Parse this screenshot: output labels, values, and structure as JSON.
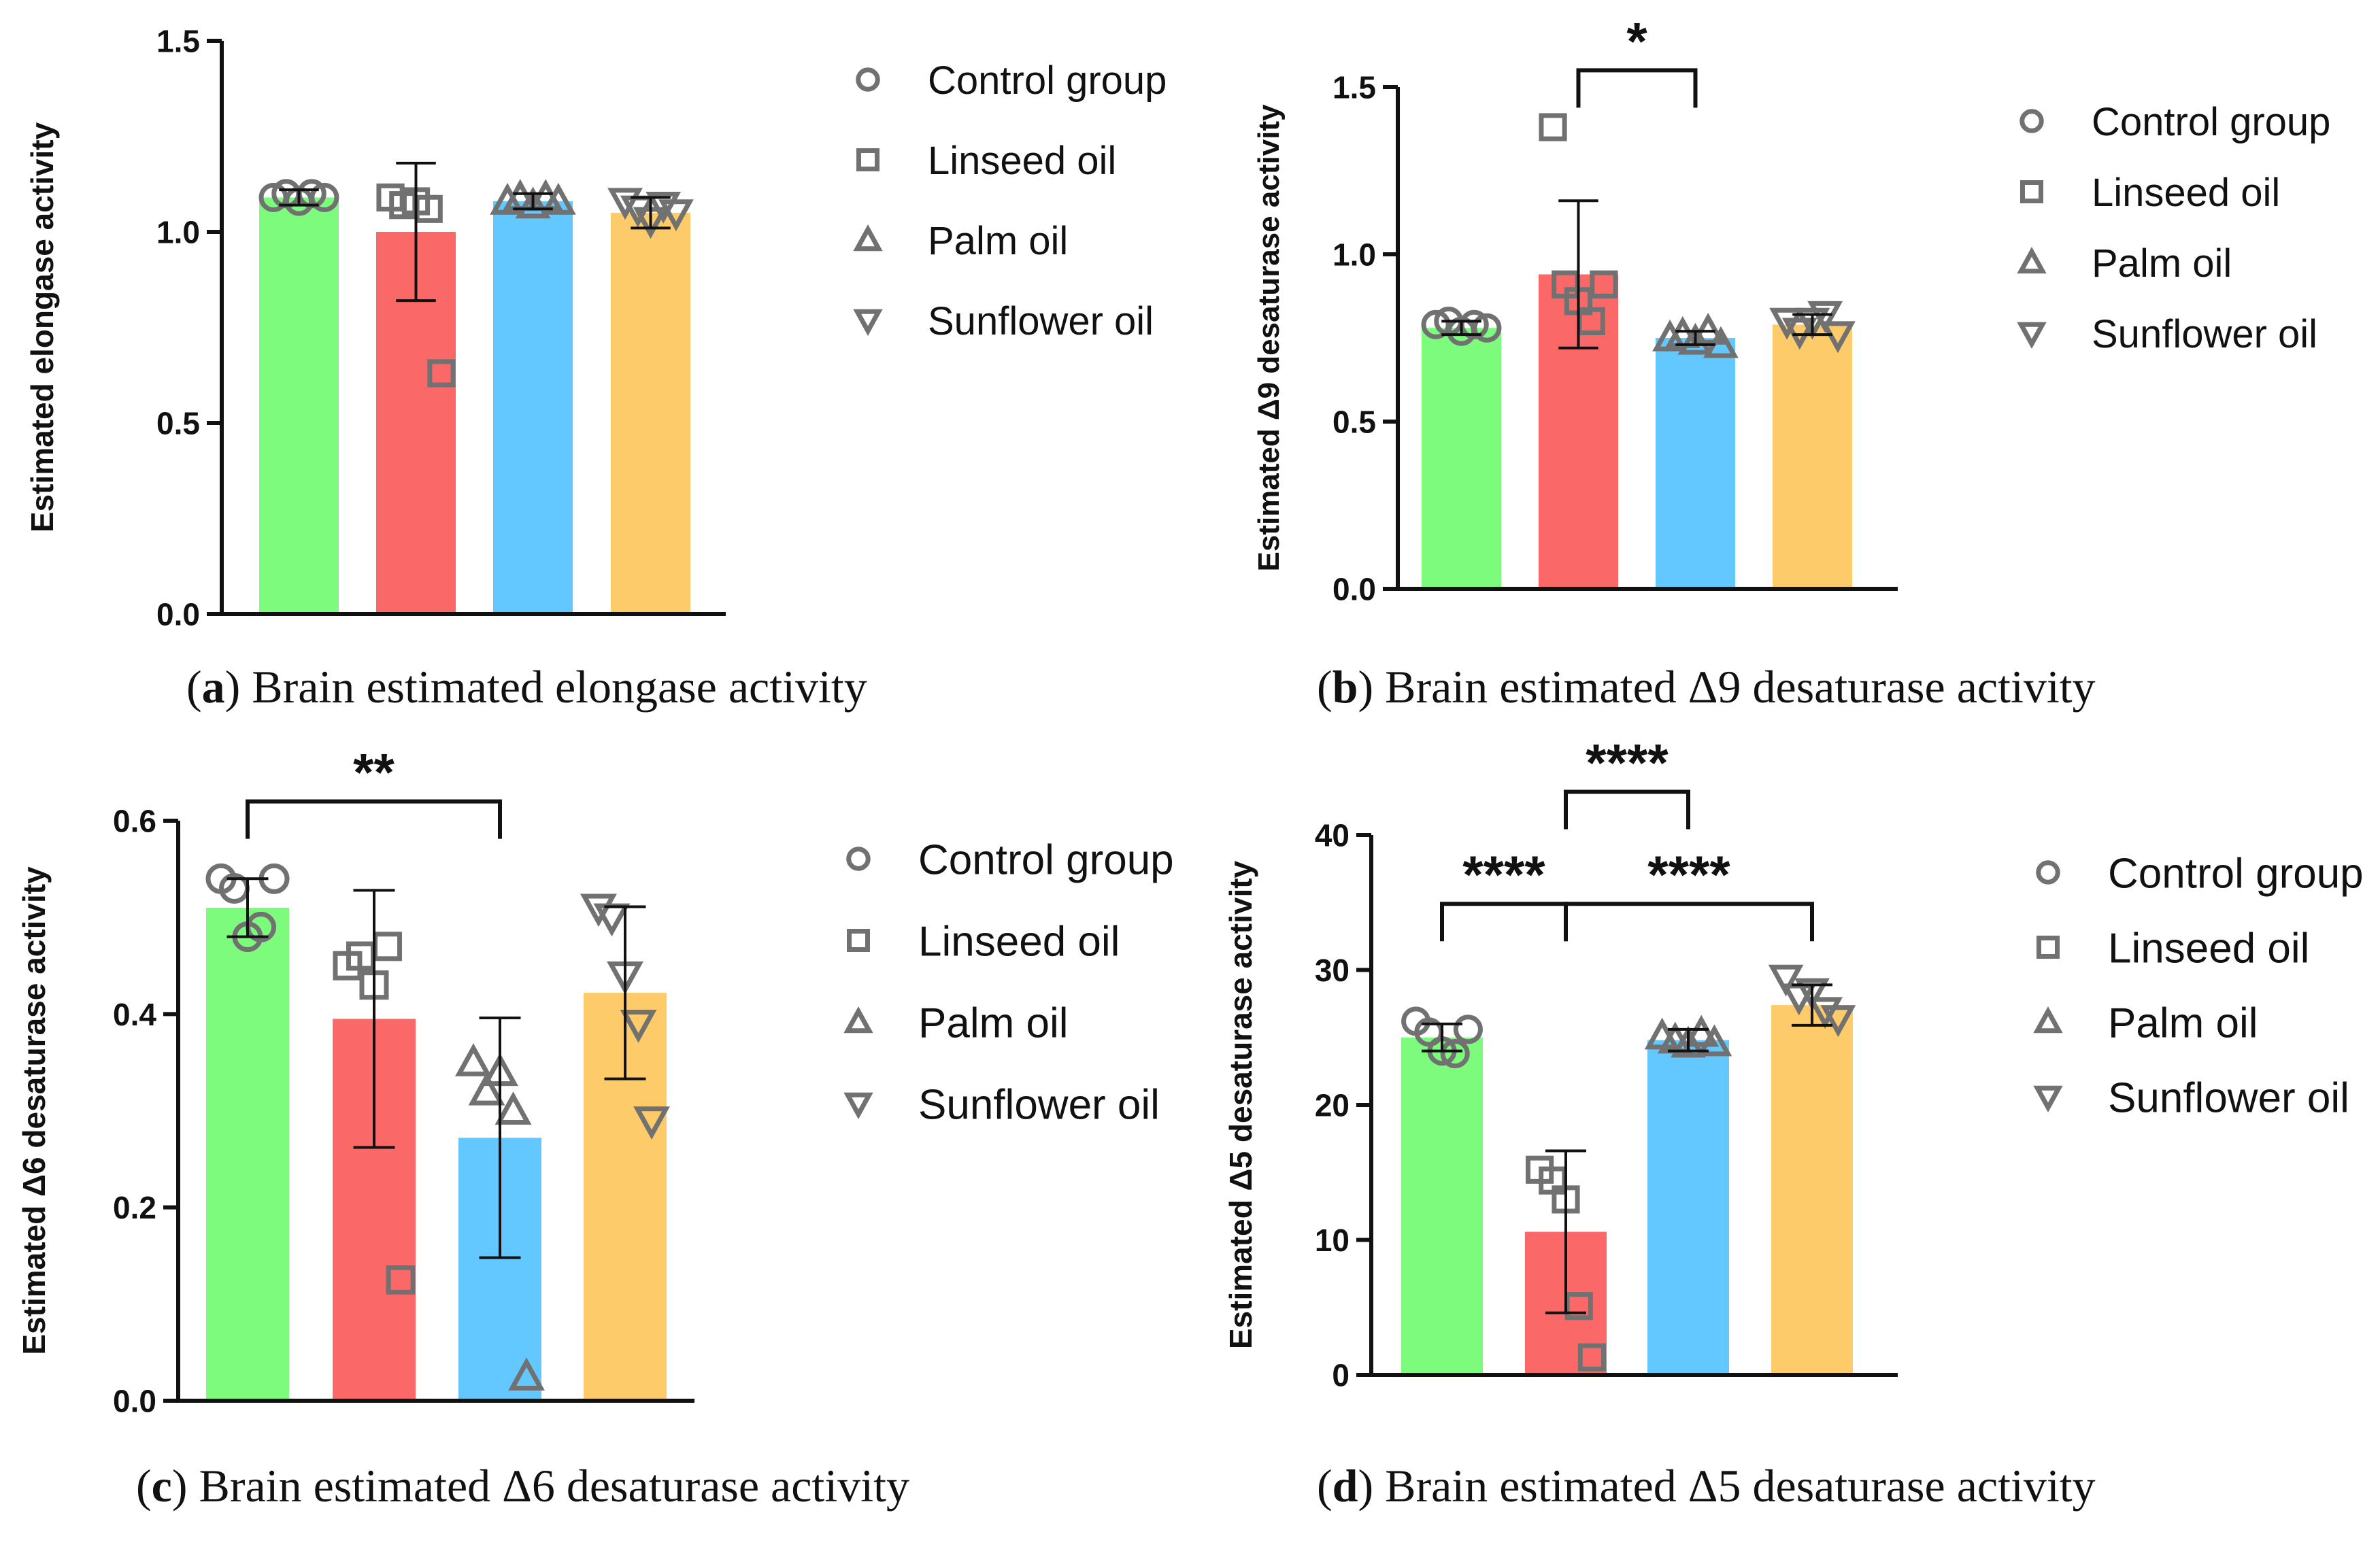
{
  "groups": [
    "Control group",
    "Linseed oil",
    "Palm oil",
    "Sunflower oil"
  ],
  "colors": {
    "Control group": "#7dfb7d",
    "Linseed oil": "#fb6868",
    "Palm oil": "#62c8ff",
    "Sunflower oil": "#fdcb6a",
    "marker": "#717171",
    "axis": "#111111"
  },
  "markers": {
    "Control group": "circle",
    "Linseed oil": "square",
    "Palm oil": "triangle-up",
    "Sunflower oil": "triangle-down"
  },
  "chart_data": [
    {
      "id": "a",
      "type": "bar",
      "caption_letter": "a",
      "caption_text": "Brain estimated elongase activity",
      "ylabel": "Estimated elongase activity",
      "ylim": [
        0,
        1.5
      ],
      "yticks": [
        0.0,
        0.5,
        1.0,
        1.5
      ],
      "ytick_labels": [
        "0.0",
        "0.5",
        "1.0",
        "1.5"
      ],
      "legend": "right",
      "categories": [
        "Control group",
        "Linseed oil",
        "Palm oil",
        "Sunflower oil"
      ],
      "values": [
        1.09,
        1.0,
        1.08,
        1.05
      ],
      "errors": [
        0.02,
        0.18,
        0.02,
        0.04
      ],
      "points": [
        [
          1.09,
          1.1,
          1.08,
          1.1,
          1.09
        ],
        [
          1.09,
          1.07,
          1.08,
          1.06,
          0.63
        ],
        [
          1.08,
          1.09,
          1.07,
          1.09,
          1.08
        ],
        [
          1.08,
          1.06,
          1.03,
          1.07,
          1.05
        ]
      ],
      "significance": []
    },
    {
      "id": "b",
      "type": "bar",
      "caption_letter": "b",
      "caption_text": "Brain estimated Δ9 desaturase activity",
      "ylabel": "Estimated Δ9 desaturase activity",
      "ylim": [
        0,
        1.5
      ],
      "yticks": [
        0.0,
        0.5,
        1.0,
        1.5
      ],
      "ytick_labels": [
        "0.0",
        "0.5",
        "1.0",
        "1.5"
      ],
      "legend": "right",
      "categories": [
        "Control group",
        "Linseed oil",
        "Palm oil",
        "Sunflower oil"
      ],
      "values": [
        0.78,
        0.94,
        0.75,
        0.79
      ],
      "errors": [
        0.02,
        0.22,
        0.02,
        0.03
      ],
      "points": [
        [
          0.79,
          0.8,
          0.77,
          0.79,
          0.78
        ],
        [
          1.38,
          0.91,
          0.86,
          0.8,
          0.91
        ],
        [
          0.75,
          0.76,
          0.74,
          0.77,
          0.73
        ],
        [
          0.8,
          0.77,
          0.8,
          0.82,
          0.76
        ]
      ],
      "significance": [
        {
          "from": 1,
          "to": 2,
          "label": "*",
          "y": 1.55
        }
      ]
    },
    {
      "id": "c",
      "type": "bar",
      "caption_letter": "c",
      "caption_text": "Brain estimated Δ6 desaturase activity",
      "ylabel": "Estimated Δ6 desaturase activity",
      "ylim": [
        0,
        0.6
      ],
      "yticks": [
        0.0,
        0.2,
        0.4,
        0.6
      ],
      "ytick_labels": [
        "0.0",
        "0.2",
        "0.4",
        "0.6"
      ],
      "legend": "right",
      "categories": [
        "Control group",
        "Linseed oil",
        "Palm oil",
        "Sunflower oil"
      ],
      "values": [
        0.51,
        0.395,
        0.272,
        0.422
      ],
      "errors": [
        0.03,
        0.133,
        0.124,
        0.089
      ],
      "points": [
        [
          0.54,
          0.53,
          0.48,
          0.49,
          0.54
        ],
        [
          0.45,
          0.46,
          0.43,
          0.47,
          0.125
        ],
        [
          0.35,
          0.32,
          0.34,
          0.3,
          0.025
        ],
        [
          0.51,
          0.5,
          0.44,
          0.39,
          0.29
        ]
      ],
      "significance": [
        {
          "from": 0,
          "to": 2,
          "label": "**",
          "y": 0.62
        }
      ]
    },
    {
      "id": "d",
      "type": "bar",
      "caption_letter": "d",
      "caption_text": "Brain estimated Δ5 desaturase activity",
      "ylabel": "Estimated Δ5 desaturase activity",
      "ylim": [
        0,
        40
      ],
      "yticks": [
        0,
        10,
        20,
        30,
        40
      ],
      "ytick_labels": [
        "0",
        "10",
        "20",
        "30",
        "40"
      ],
      "legend": "right",
      "categories": [
        "Control group",
        "Linseed oil",
        "Palm oil",
        "Sunflower oil"
      ],
      "values": [
        25.0,
        10.6,
        24.8,
        27.4
      ],
      "errors": [
        1.0,
        6.0,
        0.8,
        1.5
      ],
      "points": [
        [
          26.2,
          25.4,
          24.0,
          23.8,
          25.6
        ],
        [
          15.2,
          14.4,
          13.0,
          5.1,
          1.3
        ],
        [
          25.1,
          24.8,
          24.5,
          25.3,
          24.6
        ],
        [
          29.4,
          28.0,
          28.4,
          27.0,
          26.4
        ]
      ],
      "significance": [
        {
          "from": 1,
          "to": 2,
          "label": "****",
          "y": 43.2
        },
        {
          "from": 0,
          "to": 1,
          "label": "****",
          "y": 34.9
        },
        {
          "from": 1,
          "to": 3,
          "label": "****",
          "y": 34.9
        }
      ]
    }
  ]
}
